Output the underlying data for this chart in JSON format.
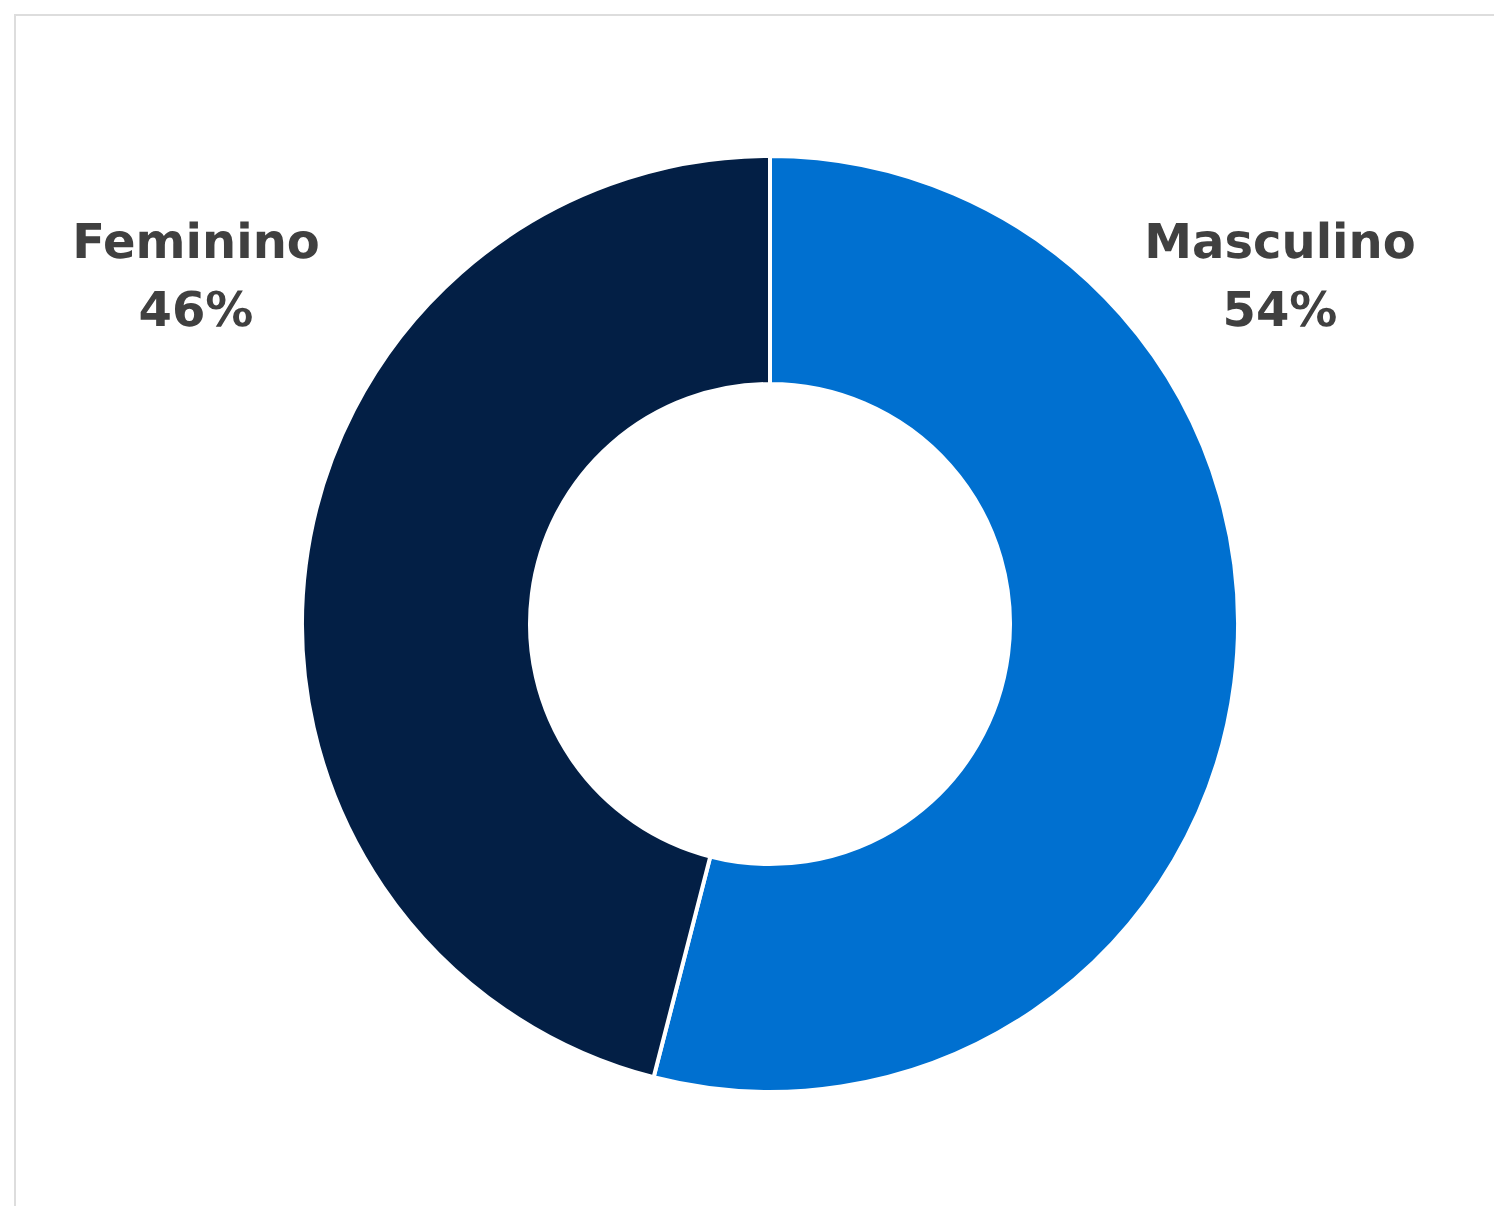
{
  "chart_data": {
    "type": "donut",
    "categories": [
      "Masculino",
      "Feminino"
    ],
    "values": [
      54,
      46
    ],
    "colors": [
      "#0070d0",
      "#031f45"
    ],
    "value_labels": [
      "54%",
      "46%"
    ],
    "legend": false
  }
}
